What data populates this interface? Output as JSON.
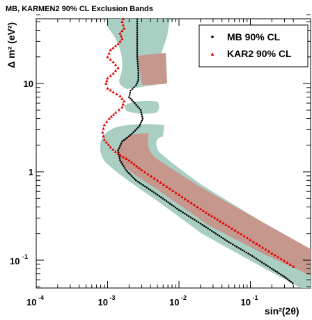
{
  "chart_data": {
    "type": "scatter",
    "title": "MB, KARMEN2 90% CL Exclusion Bands",
    "xlabel": "sin²(2θ)",
    "ylabel": "Δ m² (eV²)",
    "x_scale": "log",
    "y_scale": "log",
    "xlim": [
      0.0001,
      0.4
    ],
    "ylim": [
      0.05,
      60
    ],
    "x_tick_labels": [
      {
        "base": "10",
        "exp": "-4"
      },
      {
        "base": "10",
        "exp": "-3"
      },
      {
        "base": "10",
        "exp": "-2"
      },
      {
        "base": "10",
        "exp": "-1"
      }
    ],
    "y_tick_labels": [
      {
        "base": "10",
        "exp": "-1"
      },
      {
        "text": "1"
      },
      {
        "text": "10"
      }
    ],
    "grid": false,
    "legend_position": "top-right",
    "colors": {
      "mb": "#000000",
      "kar2": "#e00000",
      "band_outer": "#a9cfc3",
      "band_inner": "#c6988d"
    },
    "series": [
      {
        "name": "MB 90% CL",
        "marker": "dot",
        "color": "#000000",
        "points": [
          [
            0.39,
            0.055
          ],
          [
            0.3,
            0.065
          ],
          [
            0.2,
            0.08
          ],
          [
            0.1,
            0.115
          ],
          [
            0.05,
            0.16
          ],
          [
            0.02,
            0.26
          ],
          [
            0.01,
            0.37
          ],
          [
            0.005,
            0.55
          ],
          [
            0.0025,
            0.8
          ],
          [
            0.0018,
            1.05
          ],
          [
            0.0015,
            1.35
          ],
          [
            0.0014,
            1.75
          ],
          [
            0.0016,
            2.2
          ],
          [
            0.0022,
            2.7
          ],
          [
            0.0028,
            3.3
          ],
          [
            0.0031,
            4.0
          ],
          [
            0.0029,
            5.0
          ],
          [
            0.0024,
            6.0
          ],
          [
            0.002,
            7.0
          ],
          [
            0.0021,
            8.3
          ],
          [
            0.0025,
            9.5
          ],
          [
            0.0027,
            11.0
          ],
          [
            0.0027,
            14.0
          ],
          [
            0.0026,
            20.0
          ],
          [
            0.0026,
            30.0
          ],
          [
            0.0026,
            45.0
          ],
          [
            0.0026,
            60.0
          ]
        ]
      },
      {
        "name": "KAR2 90% CL",
        "marker": "triangle",
        "color": "#e00000",
        "points": [
          [
            0.4,
            0.085
          ],
          [
            0.2,
            0.12
          ],
          [
            0.1,
            0.17
          ],
          [
            0.05,
            0.24
          ],
          [
            0.02,
            0.38
          ],
          [
            0.01,
            0.55
          ],
          [
            0.005,
            0.8
          ],
          [
            0.003,
            1.05
          ],
          [
            0.002,
            1.35
          ],
          [
            0.0014,
            1.6
          ],
          [
            0.0011,
            1.9
          ],
          [
            0.0009,
            2.3
          ],
          [
            0.00085,
            2.8
          ],
          [
            0.0009,
            3.4
          ],
          [
            0.00105,
            4.0
          ],
          [
            0.0013,
            4.7
          ],
          [
            0.0016,
            5.4
          ],
          [
            0.0017,
            6.3
          ],
          [
            0.0015,
            7.2
          ],
          [
            0.0012,
            8.0
          ],
          [
            0.001,
            8.8
          ],
          [
            0.00095,
            10.0
          ],
          [
            0.001,
            11.5
          ],
          [
            0.0012,
            13.0
          ],
          [
            0.0014,
            15.0
          ],
          [
            0.0012,
            17.5
          ],
          [
            0.001,
            20.0
          ],
          [
            0.0011,
            24.0
          ],
          [
            0.0014,
            28.0
          ],
          [
            0.0016,
            32.0
          ],
          [
            0.0015,
            37.0
          ],
          [
            0.0017,
            42.0
          ],
          [
            0.0016,
            50.0
          ],
          [
            0.0017,
            58.0
          ]
        ]
      }
    ]
  }
}
